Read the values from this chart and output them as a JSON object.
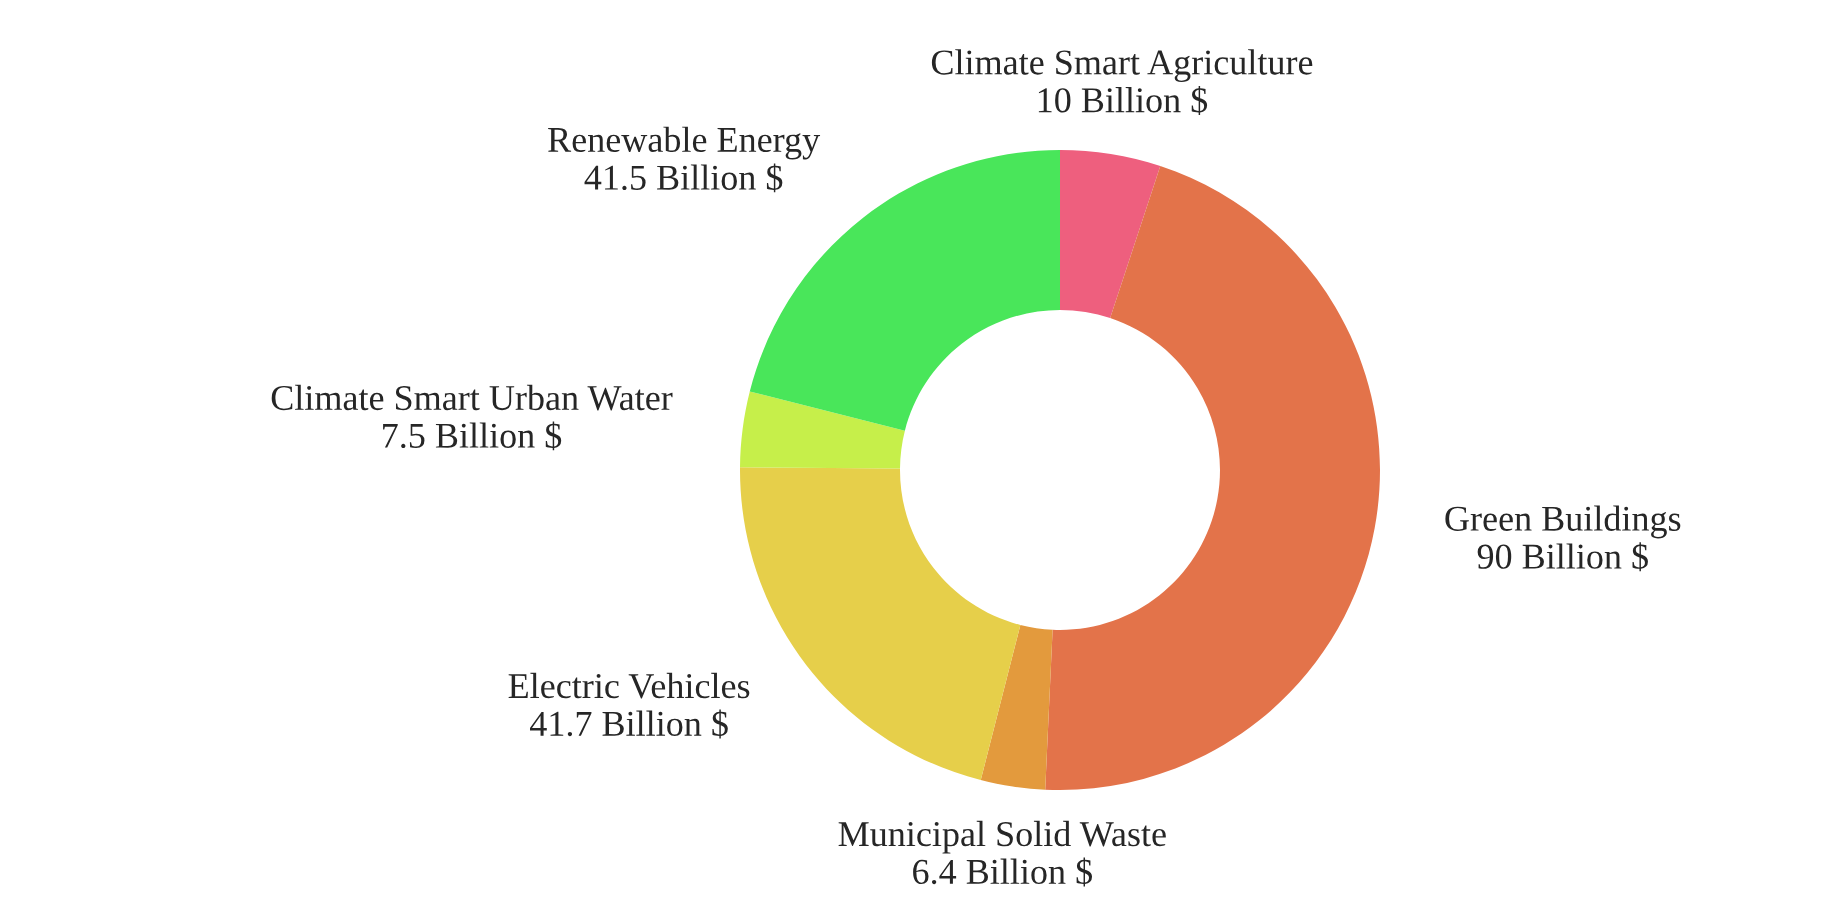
{
  "chart_data": {
    "type": "donut",
    "categories": [
      "Climate Smart Agriculture",
      "Green Buildings",
      "Municipal Solid Waste",
      "Electric Vehicles",
      "Climate Smart Urban Water",
      "Renewable Energy"
    ],
    "values": [
      10,
      90,
      6.4,
      41.7,
      7.5,
      41.5
    ],
    "value_labels": [
      "10 Billion $",
      "90 Billion $",
      "6.4 Billion $",
      "41.7 Billion $",
      "7.5 Billion $",
      "41.5 Billion $"
    ],
    "colors": [
      "#ee5f7e",
      "#e3734a",
      "#e39a3d",
      "#e6cf4a",
      "#c6ef4a",
      "#49e65a"
    ],
    "legend": false
  }
}
